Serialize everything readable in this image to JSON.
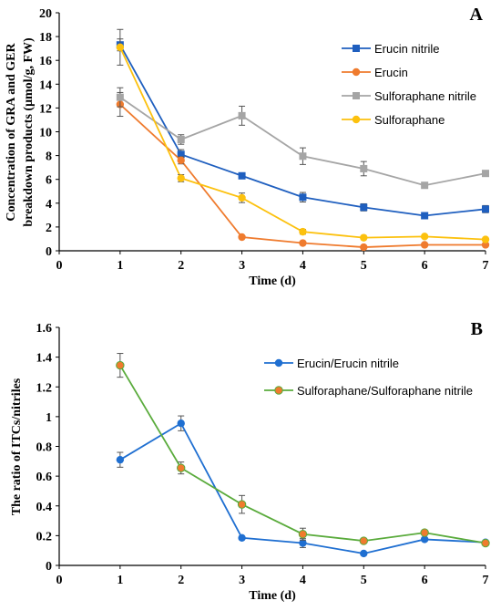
{
  "chart_data": [
    {
      "type": "line",
      "panel_label": "A",
      "xlabel": "Time (d)",
      "ylabel_lines": [
        "Concentration of GRA and GER",
        "breakdown products (μmol/g, FW)"
      ],
      "xlim": [
        0,
        7
      ],
      "ylim": [
        0,
        20
      ],
      "xticks": [
        "0",
        "1",
        "2",
        "3",
        "4",
        "5",
        "6",
        "7"
      ],
      "yticks": [
        "0",
        "2",
        "4",
        "6",
        "8",
        "10",
        "12",
        "14",
        "16",
        "18",
        "20"
      ],
      "grid": false,
      "legend_position": "top-right",
      "x": [
        1,
        2,
        3,
        4,
        5,
        6,
        7
      ],
      "series": [
        {
          "name": "Erucin nitrile",
          "color": "#1f5fbf",
          "marker": "square",
          "values": [
            17.3,
            8.1,
            6.3,
            4.5,
            3.65,
            2.95,
            3.5
          ],
          "errors": [
            0.5,
            0.4,
            0.2,
            0.4,
            0.3,
            0.2,
            0.3
          ]
        },
        {
          "name": "Erucin",
          "color": "#ef7b2e",
          "marker": "circle",
          "values": [
            12.3,
            7.6,
            1.15,
            0.65,
            0.3,
            0.5,
            0.5
          ],
          "errors": [
            1.0,
            0.3,
            0.1,
            0.1,
            0.05,
            0.1,
            0.1
          ]
        },
        {
          "name": "Sulforaphane nitrile",
          "color": "#a5a5a5",
          "marker": "square",
          "values": [
            12.9,
            9.35,
            11.35,
            7.95,
            6.9,
            5.5,
            6.5
          ],
          "errors": [
            0.8,
            0.4,
            0.8,
            0.7,
            0.6,
            0.2,
            0.2
          ]
        },
        {
          "name": "Sulforaphane",
          "color": "#fcc10e",
          "marker": "circle",
          "values": [
            17.1,
            6.1,
            4.45,
            1.6,
            1.1,
            1.2,
            0.95
          ],
          "errors": [
            1.5,
            0.3,
            0.4,
            0.2,
            0.1,
            0.1,
            0.1
          ]
        }
      ]
    },
    {
      "type": "line",
      "panel_label": "B",
      "xlabel": "Time (d)",
      "ylabel_lines": [
        "The ratio of ITCs/nitriles"
      ],
      "xlim": [
        0,
        7
      ],
      "ylim": [
        0,
        1.6
      ],
      "xticks": [
        "0",
        "1",
        "2",
        "3",
        "4",
        "5",
        "6",
        "7"
      ],
      "yticks": [
        "0",
        "0.2",
        "0.4",
        "0.6",
        "0.8",
        "1",
        "1.2",
        "1.4",
        "1.6"
      ],
      "grid": false,
      "legend_position": "top-right",
      "x": [
        1,
        2,
        3,
        4,
        5,
        6,
        7
      ],
      "series": [
        {
          "name": "Erucin/Erucin nitrile",
          "color": "#1f6fd1",
          "marker": "circle",
          "values": [
            0.71,
            0.955,
            0.185,
            0.15,
            0.08,
            0.175,
            0.155
          ],
          "errors": [
            0.05,
            0.05,
            0.01,
            0.03,
            0.01,
            0.01,
            0.01
          ]
        },
        {
          "name": "Sulforaphane/Sulforaphane nitrile",
          "color": "#5aab3c",
          "marker": "circle-orange",
          "marker_fill": "#ef7b2e",
          "values": [
            1.345,
            0.655,
            0.41,
            0.21,
            0.165,
            0.22,
            0.15
          ],
          "errors": [
            0.08,
            0.04,
            0.06,
            0.04,
            0.01,
            0.01,
            0.01
          ]
        }
      ]
    }
  ]
}
